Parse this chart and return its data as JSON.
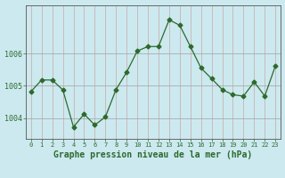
{
  "x": [
    0,
    1,
    2,
    3,
    4,
    5,
    6,
    7,
    8,
    9,
    10,
    11,
    12,
    13,
    14,
    15,
    16,
    17,
    18,
    19,
    20,
    21,
    22,
    23
  ],
  "y": [
    1004.82,
    1005.18,
    1005.18,
    1004.87,
    1003.72,
    1004.12,
    1003.78,
    1004.03,
    1004.88,
    1005.42,
    1006.08,
    1006.22,
    1006.22,
    1007.05,
    1006.88,
    1006.22,
    1005.55,
    1005.22,
    1004.88,
    1004.72,
    1004.68,
    1005.12,
    1004.68,
    1005.62
  ],
  "line_color": "#2d6a2d",
  "marker": "D",
  "marker_size": 2.5,
  "background_color": "#cce9ef",
  "grid_color_v": "#b0c8cc",
  "grid_color_h": "#b0b0b0",
  "xlabel": "Graphe pression niveau de la mer (hPa)",
  "xlabel_fontsize": 7,
  "tick_label_color": "#2d6a2d",
  "yticks": [
    1004,
    1005,
    1006
  ],
  "xlim": [
    -0.5,
    23.5
  ],
  "ylim": [
    1003.35,
    1007.5
  ]
}
